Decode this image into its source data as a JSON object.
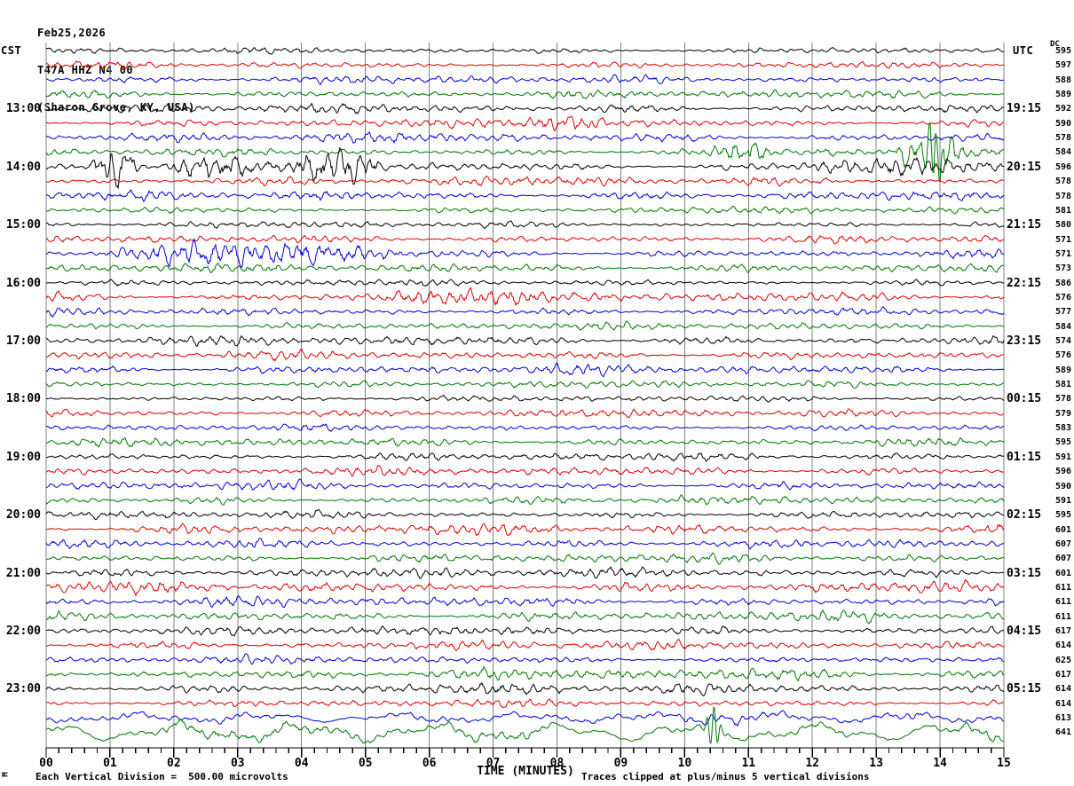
{
  "header": {
    "date": "Feb25,2026",
    "station": "T47A HHZ N4 00",
    "location": "(Sharon Grove, KY, USA)",
    "tz_left": "CST",
    "tz_right": "UTC",
    "dc_label": "DC"
  },
  "footer": {
    "left": "Each Vertical Division =  500.00 microvolts",
    "right": "Traces clipped at plus/minus 5 vertical divisions",
    "mark": "M"
  },
  "chart_data": {
    "type": "line",
    "subtype": "helicorder-seismogram",
    "title": "T47A HHZ N4 00 (Sharon Grove, KY, USA) Feb25,2026",
    "x_label": "TIME (MINUTES)",
    "x_range": [
      0,
      15
    ],
    "x_tick_labels": [
      "00",
      "01",
      "02",
      "03",
      "04",
      "05",
      "06",
      "07",
      "08",
      "09",
      "10",
      "11",
      "12",
      "13",
      "14",
      "15"
    ],
    "rows": 48,
    "minutes_per_row": 15,
    "first_row_cst": "12:00",
    "left_time_zone": "CST",
    "right_time_zone": "UTC",
    "label_every_rows": 4,
    "first_label_row": 4,
    "left_time_labels": [
      "13:00",
      "14:00",
      "15:00",
      "16:00",
      "17:00",
      "18:00",
      "19:00",
      "20:00",
      "21:00",
      "22:00",
      "23:00"
    ],
    "right_time_labels": [
      "19:15",
      "20:15",
      "21:15",
      "22:15",
      "23:15",
      "00:15",
      "01:15",
      "02:15",
      "03:15",
      "04:15",
      "05:15"
    ],
    "dc_values": [
      595,
      597,
      588,
      589,
      592,
      590,
      578,
      584,
      596,
      578,
      578,
      581,
      580,
      571,
      571,
      573,
      586,
      576,
      577,
      584,
      574,
      576,
      589,
      581,
      578,
      579,
      583,
      595,
      591,
      596,
      590,
      591,
      595,
      601,
      607,
      607,
      601,
      611,
      611,
      611,
      617,
      614,
      625,
      617,
      614,
      614,
      613,
      641
    ],
    "trace_colors": [
      "#000000",
      "#e00000",
      "#0000dd",
      "#007700"
    ],
    "grid_color": "#808080",
    "axis_color": "#000000",
    "scale_microvolts_per_division": 500.0,
    "clip_divisions": 5,
    "events": [
      {
        "row": 5,
        "start": 7.5,
        "end": 8.8,
        "amp": 6
      },
      {
        "row": 7,
        "start": 10.35,
        "end": 11.45,
        "amp": 7
      },
      {
        "row": 7,
        "start": 13.25,
        "end": 14.5,
        "amp": 13
      },
      {
        "row": 7,
        "spike_at": 13.93,
        "amp": 38
      },
      {
        "row": 8,
        "start": 0.7,
        "end": 1.45,
        "amp": 15
      },
      {
        "row": 8,
        "start": 1.85,
        "end": 3.35,
        "amp": 8
      },
      {
        "row": 8,
        "start": 3.8,
        "end": 5.35,
        "amp": 12
      },
      {
        "row": 8,
        "start": 11.7,
        "end": 15.0,
        "amp": 5
      },
      {
        "row": 14,
        "start": 0.8,
        "end": 5.7,
        "amp": 7
      },
      {
        "row": 17,
        "start": 5.15,
        "end": 7.75,
        "amp": 5
      },
      {
        "row": 46,
        "start": 0,
        "end": 15,
        "amp": 3,
        "slow": true
      },
      {
        "row": 47,
        "start": 0,
        "end": 15,
        "amp": 6,
        "slow": true
      },
      {
        "row": 47,
        "spike_at": 10.45,
        "amp": 24
      }
    ]
  }
}
